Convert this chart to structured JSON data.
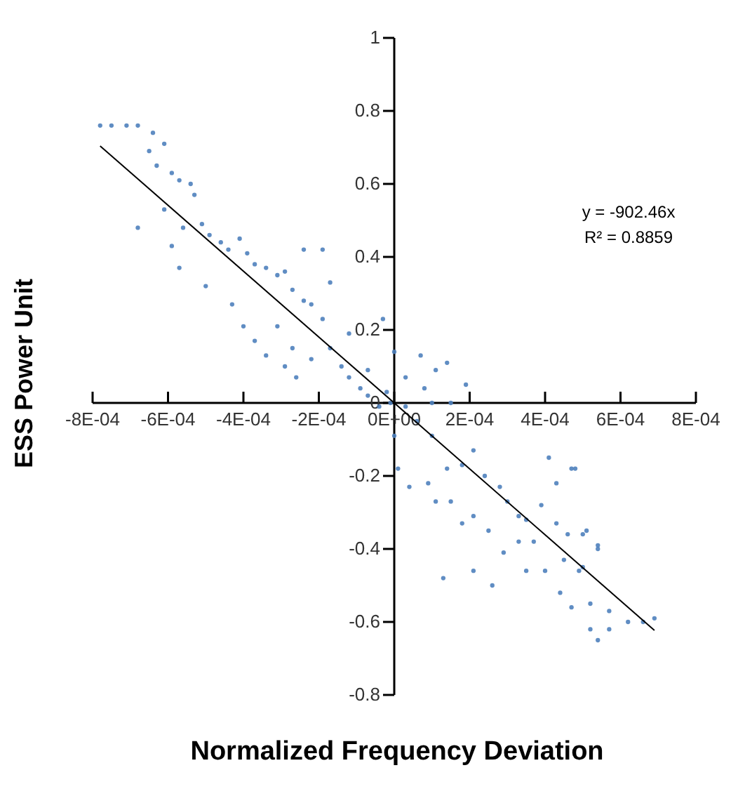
{
  "chart_data": {
    "type": "scatter",
    "xlabel": "Normalized Frequency Deviation",
    "ylabel": "ESS Power Unit",
    "xlim": [
      -0.0008,
      0.0008
    ],
    "ylim": [
      -0.8,
      1
    ],
    "xticks": [
      {
        "value": -0.0008,
        "label": "-8E-04"
      },
      {
        "value": -0.0006,
        "label": "-6E-04"
      },
      {
        "value": -0.0004,
        "label": "-4E-04"
      },
      {
        "value": -0.0002,
        "label": "-2E-04"
      },
      {
        "value": 0,
        "label": "0E+00"
      },
      {
        "value": 0.0002,
        "label": "2E-04"
      },
      {
        "value": 0.0004,
        "label": "4E-04"
      },
      {
        "value": 0.0006,
        "label": "6E-04"
      },
      {
        "value": 0.0008,
        "label": "8E-04"
      }
    ],
    "yticks": [
      -0.8,
      -0.6,
      -0.4,
      -0.2,
      {
        "value": 0,
        "label": "0"
      },
      0.2,
      0.4,
      0.6,
      0.8,
      {
        "value": 1,
        "label": "1"
      }
    ],
    "grid": false,
    "annotations": [
      "y = -902.46x",
      "R² = 0.8859"
    ],
    "series": [
      {
        "color": "#4f81bd",
        "marker": "circle",
        "x": [
          -0.00078,
          -0.00075,
          -0.00071,
          -0.00068,
          -0.00064,
          -0.00061,
          -0.00065,
          -0.00063,
          -0.00059,
          -0.00057,
          -0.00054,
          -0.00053,
          -0.00068,
          -0.00061,
          -0.00056,
          -0.00051,
          -0.00049,
          -0.00046,
          -0.00044,
          -0.00041,
          -0.00039,
          -0.00037,
          -0.00034,
          -0.00031,
          -0.00029,
          -0.00027,
          -0.00024,
          -0.00022,
          -0.00019,
          -0.00019,
          -0.00024,
          -0.00017,
          -0.00057,
          -0.0005,
          -0.00059,
          -0.00043,
          -0.0004,
          -0.00037,
          -0.00034,
          -0.00029,
          -0.00026,
          -0.00031,
          -0.00027,
          -0.00022,
          -0.00017,
          -0.00014,
          -0.00012,
          -9e-05,
          -7e-05,
          -4e-05,
          -2e-05,
          -7e-05,
          -0.00012,
          -3e-05,
          0.0,
          7e-05,
          0.00011,
          0.00014,
          0.00019,
          3e-05,
          8e-05,
          -1e-05,
          3e-05,
          0.0001,
          0.00015,
          0.0,
          6e-05,
          0.0001,
          1e-05,
          4e-05,
          9e-05,
          0.00014,
          0.00018,
          0.00021,
          0.00024,
          0.00028,
          0.0003,
          0.00033,
          0.00035,
          0.00039,
          0.00043,
          0.00047,
          0.00018,
          0.00021,
          0.00025,
          0.00029,
          0.00033,
          0.00037,
          0.00043,
          0.00046,
          0.0005,
          0.00054,
          0.0005,
          0.00045,
          0.0004,
          0.00035,
          0.00013,
          0.00026,
          0.00021,
          0.00011,
          0.00015,
          0.00048,
          0.00041,
          0.00051,
          0.00054,
          0.00049,
          0.00052,
          0.00047,
          0.00057,
          0.00062,
          0.00066,
          0.00069,
          0.00054,
          0.00052,
          0.00057,
          0.00044
        ],
        "values": [
          0.76,
          0.76,
          0.76,
          0.76,
          0.74,
          0.71,
          0.69,
          0.65,
          0.63,
          0.61,
          0.6,
          0.57,
          0.48,
          0.53,
          0.48,
          0.49,
          0.46,
          0.44,
          0.42,
          0.45,
          0.41,
          0.38,
          0.37,
          0.35,
          0.36,
          0.31,
          0.28,
          0.27,
          0.23,
          0.42,
          0.42,
          0.33,
          0.37,
          0.32,
          0.43,
          0.27,
          0.21,
          0.17,
          0.13,
          0.1,
          0.07,
          0.21,
          0.15,
          0.12,
          0.15,
          0.1,
          0.07,
          0.04,
          0.02,
          -0.01,
          0.03,
          0.09,
          0.19,
          0.23,
          0.14,
          0.13,
          0.09,
          0.11,
          0.05,
          0.07,
          0.04,
          0.0,
          -0.01,
          0.0,
          0.0,
          -0.09,
          -0.05,
          -0.09,
          -0.18,
          -0.23,
          -0.22,
          -0.18,
          -0.17,
          -0.13,
          -0.2,
          -0.23,
          -0.27,
          -0.31,
          -0.32,
          -0.28,
          -0.22,
          -0.18,
          -0.33,
          -0.31,
          -0.35,
          -0.41,
          -0.38,
          -0.38,
          -0.33,
          -0.36,
          -0.36,
          -0.4,
          -0.45,
          -0.43,
          -0.46,
          -0.46,
          -0.48,
          -0.5,
          -0.46,
          -0.27,
          -0.27,
          -0.18,
          -0.15,
          -0.35,
          -0.39,
          -0.46,
          -0.55,
          -0.56,
          -0.57,
          -0.6,
          -0.6,
          -0.59,
          -0.65,
          -0.62,
          -0.62,
          -0.52
        ]
      },
      {
        "type": "line",
        "color": "#000000",
        "line_style": "solid",
        "x": [
          -0.00078,
          0.00069
        ],
        "values": [
          0.704,
          -0.623
        ]
      }
    ]
  }
}
